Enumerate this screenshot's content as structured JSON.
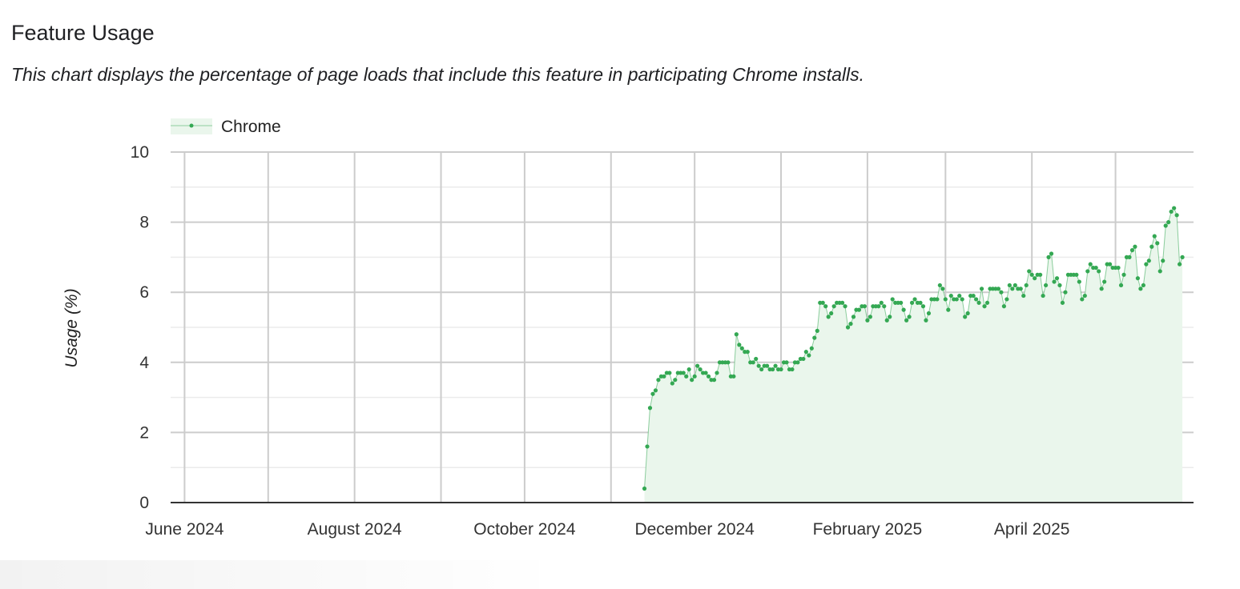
{
  "header": {
    "title": "Feature Usage",
    "subtitle": "This chart displays the percentage of page loads that include this feature in participating Chrome installs."
  },
  "chart_data": {
    "type": "area",
    "title": "",
    "xlabel": "",
    "ylabel": "Usage (%)",
    "ylim": [
      0,
      10
    ],
    "xlim": [
      "2024-05-27",
      "2025-05-29"
    ],
    "y_ticks": [
      "0",
      "2",
      "4",
      "6",
      "8",
      "10"
    ],
    "y_tick_values": [
      0,
      2,
      4,
      6,
      8,
      10
    ],
    "x_ticks": [
      {
        "date": "2024-06-01",
        "label": "June 2024"
      },
      {
        "date": "2024-08-01",
        "label": "August 2024"
      },
      {
        "date": "2024-10-01",
        "label": "October 2024"
      },
      {
        "date": "2024-12-01",
        "label": "December 2024"
      },
      {
        "date": "2025-02-01",
        "label": "February 2025"
      },
      {
        "date": "2025-04-01",
        "label": "April 2025"
      }
    ],
    "x_gridlines": [
      "2024-06-01",
      "2024-07-01",
      "2024-08-01",
      "2024-09-01",
      "2024-10-01",
      "2024-11-01",
      "2024-12-01",
      "2025-01-01",
      "2025-02-01",
      "2025-03-01",
      "2025-04-01",
      "2025-05-01"
    ],
    "grid": true,
    "legend_position": "top-left",
    "colors": {
      "line": "#34a853",
      "fill": "#eaf6ec",
      "grid_major": "#cccccc",
      "grid_minor": "#ebebeb",
      "axis": "#333333"
    },
    "series": [
      {
        "name": "Chrome",
        "x": [
          "2024-11-13",
          "2024-11-14",
          "2024-11-15",
          "2024-11-16",
          "2024-11-17",
          "2024-11-18",
          "2024-11-19",
          "2024-11-20",
          "2024-11-21",
          "2024-11-22",
          "2024-11-23",
          "2024-11-24",
          "2024-11-25",
          "2024-11-26",
          "2024-11-27",
          "2024-11-28",
          "2024-11-29",
          "2024-11-30",
          "2024-12-01",
          "2024-12-02",
          "2024-12-03",
          "2024-12-04",
          "2024-12-05",
          "2024-12-06",
          "2024-12-07",
          "2024-12-08",
          "2024-12-09",
          "2024-12-10",
          "2024-12-11",
          "2024-12-12",
          "2024-12-13",
          "2024-12-14",
          "2024-12-15",
          "2024-12-16",
          "2024-12-17",
          "2024-12-18",
          "2024-12-19",
          "2024-12-20",
          "2024-12-21",
          "2024-12-22",
          "2024-12-23",
          "2024-12-24",
          "2024-12-25",
          "2024-12-26",
          "2024-12-27",
          "2024-12-28",
          "2024-12-29",
          "2024-12-30",
          "2024-12-31",
          "2025-01-01",
          "2025-01-02",
          "2025-01-03",
          "2025-01-04",
          "2025-01-05",
          "2025-01-06",
          "2025-01-07",
          "2025-01-08",
          "2025-01-09",
          "2025-01-10",
          "2025-01-11",
          "2025-01-12",
          "2025-01-13",
          "2025-01-14",
          "2025-01-15",
          "2025-01-16",
          "2025-01-17",
          "2025-01-18",
          "2025-01-19",
          "2025-01-20",
          "2025-01-21",
          "2025-01-22",
          "2025-01-23",
          "2025-01-24",
          "2025-01-25",
          "2025-01-26",
          "2025-01-27",
          "2025-01-28",
          "2025-01-29",
          "2025-01-30",
          "2025-01-31",
          "2025-02-01",
          "2025-02-02",
          "2025-02-03",
          "2025-02-04",
          "2025-02-05",
          "2025-02-06",
          "2025-02-07",
          "2025-02-08",
          "2025-02-09",
          "2025-02-10",
          "2025-02-11",
          "2025-02-12",
          "2025-02-13",
          "2025-02-14",
          "2025-02-15",
          "2025-02-16",
          "2025-02-17",
          "2025-02-18",
          "2025-02-19",
          "2025-02-20",
          "2025-02-21",
          "2025-02-22",
          "2025-02-23",
          "2025-02-24",
          "2025-02-25",
          "2025-02-26",
          "2025-02-27",
          "2025-02-28",
          "2025-03-01",
          "2025-03-02",
          "2025-03-03",
          "2025-03-04",
          "2025-03-05",
          "2025-03-06",
          "2025-03-07",
          "2025-03-08",
          "2025-03-09",
          "2025-03-10",
          "2025-03-11",
          "2025-03-12",
          "2025-03-13",
          "2025-03-14",
          "2025-03-15",
          "2025-03-16",
          "2025-03-17",
          "2025-03-18",
          "2025-03-19",
          "2025-03-20",
          "2025-03-21",
          "2025-03-22",
          "2025-03-23",
          "2025-03-24",
          "2025-03-25",
          "2025-03-26",
          "2025-03-27",
          "2025-03-28",
          "2025-03-29",
          "2025-03-30",
          "2025-03-31",
          "2025-04-01",
          "2025-04-02",
          "2025-04-03",
          "2025-04-04",
          "2025-04-05",
          "2025-04-06",
          "2025-04-07",
          "2025-04-08",
          "2025-04-09",
          "2025-04-10",
          "2025-04-11",
          "2025-04-12",
          "2025-04-13",
          "2025-04-14",
          "2025-04-15",
          "2025-04-16",
          "2025-04-17",
          "2025-04-18",
          "2025-04-19",
          "2025-04-20",
          "2025-04-21",
          "2025-04-22",
          "2025-04-23",
          "2025-04-24",
          "2025-04-25",
          "2025-04-26",
          "2025-04-27",
          "2025-04-28",
          "2025-04-29",
          "2025-04-30",
          "2025-05-01",
          "2025-05-02",
          "2025-05-03",
          "2025-05-04",
          "2025-05-05",
          "2025-05-06",
          "2025-05-07",
          "2025-05-08",
          "2025-05-09",
          "2025-05-10",
          "2025-05-11",
          "2025-05-12",
          "2025-05-13",
          "2025-05-14",
          "2025-05-15",
          "2025-05-16",
          "2025-05-17",
          "2025-05-18",
          "2025-05-19",
          "2025-05-20",
          "2025-05-21",
          "2025-05-22",
          "2025-05-23",
          "2025-05-24",
          "2025-05-25"
        ],
        "values": [
          0.4,
          1.6,
          2.7,
          3.1,
          3.2,
          3.5,
          3.6,
          3.6,
          3.7,
          3.7,
          3.4,
          3.5,
          3.7,
          3.7,
          3.7,
          3.6,
          3.8,
          3.5,
          3.6,
          3.9,
          3.8,
          3.7,
          3.7,
          3.6,
          3.5,
          3.5,
          3.7,
          4.0,
          4.0,
          4.0,
          4.0,
          3.6,
          3.6,
          4.8,
          4.5,
          4.4,
          4.3,
          4.3,
          4.0,
          4.0,
          4.1,
          3.9,
          3.8,
          3.9,
          3.9,
          3.8,
          3.8,
          3.9,
          3.8,
          3.8,
          4.0,
          4.0,
          3.8,
          3.8,
          4.0,
          4.0,
          4.1,
          4.1,
          4.3,
          4.2,
          4.4,
          4.7,
          4.9,
          5.7,
          5.7,
          5.6,
          5.3,
          5.4,
          5.6,
          5.7,
          5.7,
          5.7,
          5.6,
          5.0,
          5.1,
          5.3,
          5.5,
          5.5,
          5.6,
          5.6,
          5.2,
          5.3,
          5.6,
          5.6,
          5.6,
          5.7,
          5.6,
          5.2,
          5.3,
          5.8,
          5.7,
          5.7,
          5.7,
          5.5,
          5.2,
          5.3,
          5.7,
          5.8,
          5.7,
          5.7,
          5.6,
          5.2,
          5.4,
          5.8,
          5.8,
          5.8,
          6.2,
          6.1,
          5.8,
          5.5,
          5.9,
          5.8,
          5.8,
          5.9,
          5.8,
          5.3,
          5.4,
          5.9,
          5.9,
          5.8,
          5.7,
          6.1,
          5.6,
          5.7,
          6.1,
          6.1,
          6.1,
          6.1,
          6.0,
          5.6,
          5.8,
          6.2,
          6.1,
          6.2,
          6.1,
          6.1,
          5.9,
          6.2,
          6.6,
          6.5,
          6.4,
          6.5,
          6.5,
          5.9,
          6.2,
          7.0,
          7.1,
          6.3,
          6.4,
          6.2,
          5.7,
          6.0,
          6.5,
          6.5,
          6.5,
          6.5,
          6.3,
          5.8,
          5.9,
          6.6,
          6.8,
          6.7,
          6.7,
          6.6,
          6.1,
          6.3,
          6.8,
          6.8,
          6.7,
          6.7,
          6.7,
          6.2,
          6.5,
          7.0,
          7.0,
          7.2,
          7.3,
          6.4,
          6.1,
          6.2,
          6.8,
          6.9,
          7.3,
          7.6,
          7.4,
          6.6,
          6.9,
          7.9,
          8.0,
          8.3,
          8.4,
          8.2,
          6.8,
          7.0
        ]
      }
    ]
  }
}
